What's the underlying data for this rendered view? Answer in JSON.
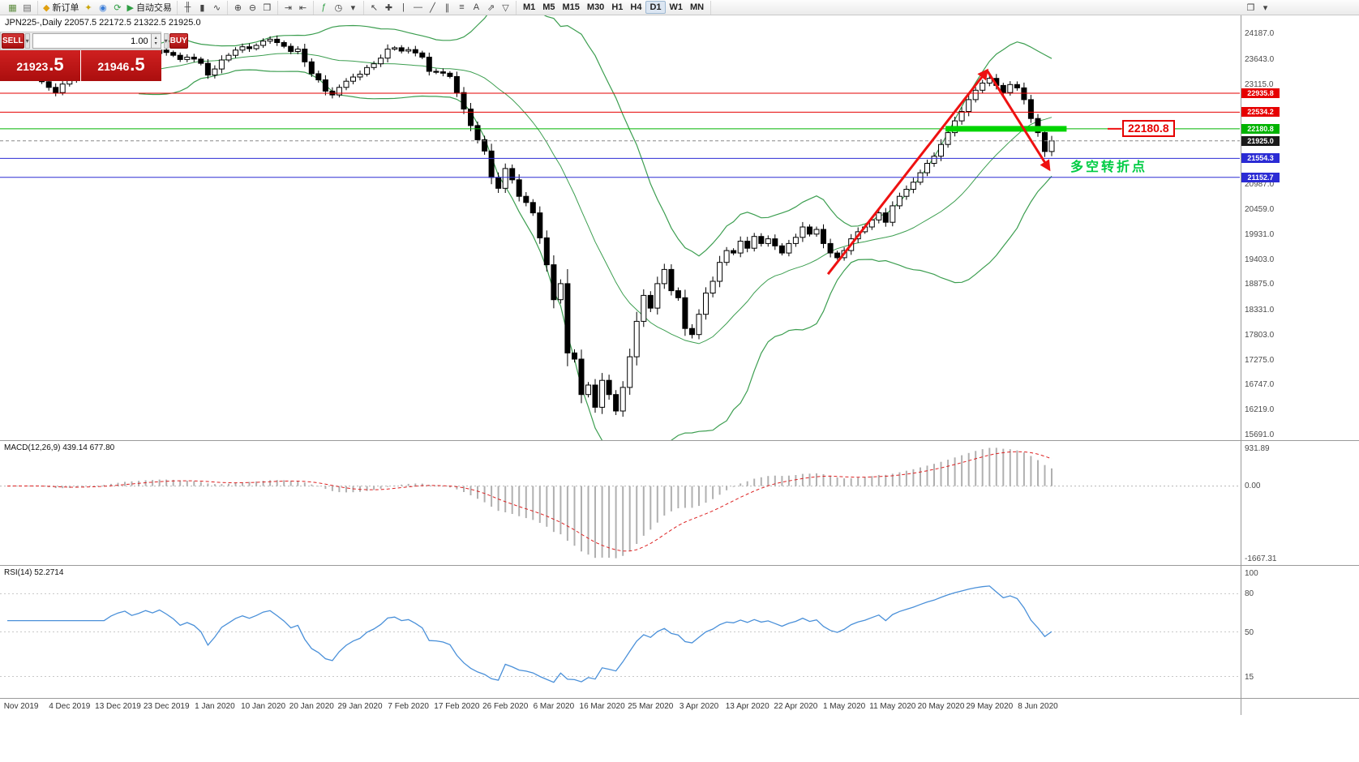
{
  "toolbar": {
    "groups": [
      {
        "name": "charts",
        "items": [
          {
            "name": "new-chart-button",
            "glyph": "▦",
            "color": "#5b8a3c"
          },
          {
            "name": "profiles-button",
            "glyph": "▤",
            "color": "#666666"
          }
        ]
      },
      {
        "name": "trading",
        "items": [
          {
            "name": "new-order-button",
            "glyph": "◆",
            "color": "#e0a010",
            "label": "新订单"
          },
          {
            "name": "metaeditor-button",
            "glyph": "✦",
            "color": "#caa50a"
          },
          {
            "name": "navigator-button",
            "glyph": "◉",
            "color": "#3b7dd8"
          },
          {
            "name": "refresh-button",
            "glyph": "⟳",
            "color": "#2f9e44"
          },
          {
            "name": "autotrading-button",
            "glyph": "▶",
            "color": "#2f9e44",
            "label": "自动交易"
          }
        ]
      },
      {
        "name": "chart-type",
        "items": [
          {
            "name": "bar-chart-button",
            "glyph": "╫",
            "color": "#444444"
          },
          {
            "name": "candlestick-chart-button",
            "glyph": "▮",
            "color": "#444444"
          },
          {
            "name": "line-chart-button",
            "glyph": "∿",
            "color": "#444444"
          }
        ]
      },
      {
        "name": "zoom",
        "items": [
          {
            "name": "zoom-in-button",
            "glyph": "⊕",
            "color": "#444444"
          },
          {
            "name": "zoom-out-button",
            "glyph": "⊖",
            "color": "#444444"
          },
          {
            "name": "tile-windows-button",
            "glyph": "❒",
            "color": "#444444"
          }
        ]
      },
      {
        "name": "scroll",
        "items": [
          {
            "name": "auto-scroll-button",
            "glyph": "⇥",
            "color": "#444444"
          },
          {
            "name": "chart-shift-button",
            "glyph": "⇤",
            "color": "#444444"
          }
        ]
      },
      {
        "name": "indicators",
        "items": [
          {
            "name": "indicators-button",
            "glyph": "ƒ",
            "color": "#2f9e44"
          },
          {
            "name": "periods-button",
            "glyph": "◷",
            "color": "#444444"
          },
          {
            "name": "templates-button",
            "glyph": "▾",
            "color": "#444444"
          }
        ]
      },
      {
        "name": "drawing",
        "items": [
          {
            "name": "cursor-button",
            "glyph": "↖",
            "color": "#444444"
          },
          {
            "name": "crosshair-button",
            "glyph": "✚",
            "color": "#444444"
          },
          {
            "name": "vertical-line-button",
            "glyph": "|",
            "color": "#444444"
          },
          {
            "name": "horizontal-line-button",
            "glyph": "—",
            "color": "#444444"
          },
          {
            "name": "trendline-button",
            "glyph": "╱",
            "color": "#444444"
          },
          {
            "name": "channel-button",
            "glyph": "∥",
            "color": "#444444"
          },
          {
            "name": "fibonacci-button",
            "glyph": "≡",
            "color": "#444444"
          },
          {
            "name": "text-button",
            "glyph": "A",
            "color": "#444444"
          },
          {
            "name": "arrows-button",
            "glyph": "⇗",
            "color": "#444444"
          },
          {
            "name": "shapes-button",
            "glyph": "▽",
            "color": "#444444"
          }
        ]
      },
      {
        "name": "timeframes",
        "items": [
          {
            "name": "timeframe-m1",
            "label": "M1",
            "tf": true
          },
          {
            "name": "timeframe-m5",
            "label": "M5",
            "tf": true
          },
          {
            "name": "timeframe-m15",
            "label": "M15",
            "tf": true
          },
          {
            "name": "timeframe-m30",
            "label": "M30",
            "tf": true
          },
          {
            "name": "timeframe-h1",
            "label": "H1",
            "tf": true
          },
          {
            "name": "timeframe-h4",
            "label": "H4",
            "tf": true
          },
          {
            "name": "timeframe-d1",
            "label": "D1",
            "tf": true,
            "active": true
          },
          {
            "name": "timeframe-w1",
            "label": "W1",
            "tf": true
          },
          {
            "name": "timeframe-mn",
            "label": "MN",
            "tf": true
          }
        ]
      },
      {
        "name": "window",
        "align": "right",
        "items": [
          {
            "name": "arrange-windows-button",
            "glyph": "❐",
            "color": "#444444"
          },
          {
            "name": "more-tools-button",
            "glyph": "▾",
            "color": "#444444"
          }
        ]
      }
    ]
  },
  "chart": {
    "header": "JPN225-,Daily  22057.5 22172.5 21322.5 21925.0"
  },
  "quote_panel": {
    "sell_label": "SELL",
    "buy_label": "BUY",
    "volume": "1.00",
    "caret_glyph": "▾",
    "spin_up_glyph": "▴",
    "spin_down_glyph": "▾",
    "sell_price": {
      "main": "21923",
      "frac": ".5"
    },
    "buy_price": {
      "main": "21946",
      "frac": ".5"
    }
  },
  "chart_data": {
    "type": "candlestick",
    "symbol": "JPN225-",
    "timeframe": "Daily",
    "current_bar": {
      "open": 22057.5,
      "high": 22172.5,
      "low": 21322.5,
      "close": 21925.0
    },
    "closes": [
      23290,
      23350,
      23270,
      23310,
      23250,
      23180,
      23060,
      22950,
      23130,
      23220,
      23300,
      23380,
      23420,
      23350,
      23510,
      23620,
      23700,
      23750,
      23690,
      23740,
      23810,
      23780,
      23850,
      23800,
      23740,
      23650,
      23700,
      23660,
      23570,
      23320,
      23450,
      23640,
      23740,
      23850,
      23920,
      23880,
      23950,
      24040,
      24080,
      24010,
      23930,
      23820,
      23870,
      23600,
      23350,
      23220,
      22980,
      22900,
      23060,
      23190,
      23280,
      23340,
      23480,
      23560,
      23680,
      23870,
      23900,
      23830,
      23860,
      23790,
      23700,
      23400,
      23390,
      23360,
      23290,
      22950,
      22600,
      22250,
      21950,
      21710,
      21150,
      20920,
      21340,
      21100,
      20750,
      20620,
      20400,
      19870,
      19300,
      18560,
      18900,
      17430,
      17300,
      16550,
      16750,
      16280,
      16850,
      16550,
      16200,
      16700,
      17350,
      18100,
      18650,
      18380,
      18900,
      19200,
      18750,
      18600,
      17950,
      17820,
      18250,
      18700,
      18950,
      19350,
      19600,
      19550,
      19800,
      19650,
      19900,
      19750,
      19850,
      19700,
      19550,
      19750,
      19880,
      20100,
      19950,
      20050,
      19750,
      19550,
      19450,
      19600,
      19850,
      20000,
      20100,
      20250,
      20400,
      20200,
      20550,
      20750,
      20900,
      21050,
      21250,
      21450,
      21600,
      21850,
      22100,
      22350,
      22550,
      22800,
      23000,
      23150,
      23250,
      23100,
      22950,
      23120,
      23050,
      22800,
      22400,
      22100,
      21700,
      21925
    ],
    "indicators": {
      "bollinger": {
        "period": 20,
        "deviation": 2
      },
      "macd": {
        "fast": 12,
        "slow": 26,
        "signal": 9
      },
      "rsi": {
        "period": 14
      }
    },
    "levels": [
      {
        "text": "22935.8",
        "price": 22935.8,
        "color": "#e60000"
      },
      {
        "text": "22534.2",
        "price": 22534.2,
        "color": "#e60000"
      },
      {
        "text": "22180.8",
        "price": 22180.8,
        "color": "#00b300"
      },
      {
        "text": "21925.0",
        "price": 21925.0,
        "color": "#888888",
        "tag": "#1a1a1a",
        "dashed": true
      },
      {
        "text": "21554.3",
        "price": 21554.3,
        "color": "#2b2bd4"
      },
      {
        "text": "21152.7",
        "price": 21152.7,
        "color": "#2b2bd4"
      }
    ],
    "price_axis_labels": [
      {
        "text": "24187.0",
        "price": 24187.0
      },
      {
        "text": "23643.0",
        "price": 23643.0
      },
      {
        "text": "23115.0",
        "price": 23115.0
      },
      {
        "text": "20987.0",
        "price": 20987.0
      },
      {
        "text": "20459.0",
        "price": 20459.0
      },
      {
        "text": "19931.0",
        "price": 19931.0
      },
      {
        "text": "19403.0",
        "price": 19403.0
      },
      {
        "text": "18875.0",
        "price": 18875.0
      },
      {
        "text": "18331.0",
        "price": 18331.0
      },
      {
        "text": "17803.0",
        "price": 17803.0
      },
      {
        "text": "17275.0",
        "price": 17275.0
      },
      {
        "text": "16747.0",
        "price": 16747.0
      },
      {
        "text": "16219.0",
        "price": 16219.0
      },
      {
        "text": "15691.0",
        "price": 15691.0
      }
    ]
  },
  "annotations": {
    "level_label": {
      "text": "22180.8",
      "color": "#e60000"
    },
    "turning_point": {
      "text": "多空转折点",
      "color": "#00cc44"
    },
    "trend_arrows": [
      {
        "from_index": 119,
        "from_price": 19100,
        "to_index": 142,
        "to_price": 23420
      },
      {
        "from_index": 142,
        "from_price": 23420,
        "to_index": 151,
        "to_price": 21320
      }
    ],
    "highlight_bar": {
      "price": 22180.8,
      "from_index": 136,
      "to_index": 153.5
    }
  },
  "macd_panel": {
    "label": "MACD(12,26,9) 439.14 677.80",
    "axis_labels": [
      {
        "text": "931.89",
        "pos": "max"
      },
      {
        "text": "0.00",
        "pos": "zero"
      },
      {
        "text": "-1667.31",
        "pos": "min"
      }
    ],
    "values": {
      "main": 439.14,
      "signal": 677.8
    }
  },
  "rsi_panel": {
    "label": "RSI(14) 52.2714",
    "value": 52.2714,
    "axis_labels": [
      {
        "text": "100",
        "value": 100
      },
      {
        "text": "80",
        "value": 80
      },
      {
        "text": "50",
        "value": 50
      },
      {
        "text": "15",
        "value": 15
      }
    ],
    "level_lines": [
      80,
      50,
      15
    ]
  },
  "time_axis": [
    "Nov 2019",
    "4 Dec 2019",
    "13 Dec 2019",
    "23 Dec 2019",
    "1 Jan 2020",
    "10 Jan 2020",
    "20 Jan 2020",
    "29 Jan 2020",
    "7 Feb 2020",
    "17 Feb 2020",
    "26 Feb 2020",
    "6 Mar 2020",
    "16 Mar 2020",
    "25 Mar 2020",
    "3 Apr 2020",
    "13 Apr 2020",
    "22 Apr 2020",
    "1 May 2020",
    "11 May 2020",
    "20 May 2020",
    "29 May 2020",
    "8 Jun 2020"
  ],
  "colors": {
    "bollinger": "#3c9e50",
    "candle_up": "#ffffff",
    "candle_down": "#000000",
    "candle_border": "#000000",
    "trend_arrow": "#ee1111",
    "highlight_green": "#00d400",
    "macd_histogram": "#b0b0b0",
    "macd_signal": "#dd2222",
    "rsi_line": "#4a90d9",
    "panel_red": "#c01414"
  }
}
